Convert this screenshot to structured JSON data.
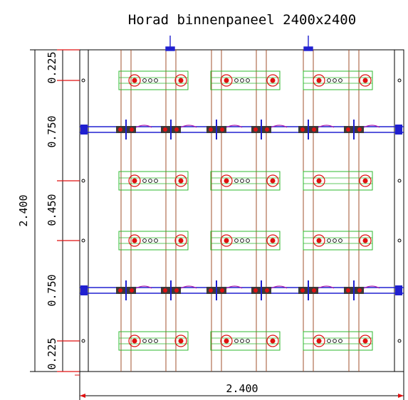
{
  "title": "Horad binnenpaneel 2400x2400",
  "dimensions": {
    "total_height": "2.400",
    "total_width": "2.400",
    "segments": [
      "0.225",
      "0.750",
      "0.450",
      "0.750",
      "0.225"
    ]
  },
  "colors": {
    "frame": "#000000",
    "column": "#a0522d",
    "plate": "#2db82d",
    "bolt": "#e01010",
    "clamp": "#2020d0",
    "dimension_tick": "#e01010",
    "background": "#ffffff"
  },
  "layout": {
    "plate_row_count": 5,
    "plate_groups_per_row": 3,
    "clamp_row_count": 2,
    "clamps_per_row": 6
  }
}
